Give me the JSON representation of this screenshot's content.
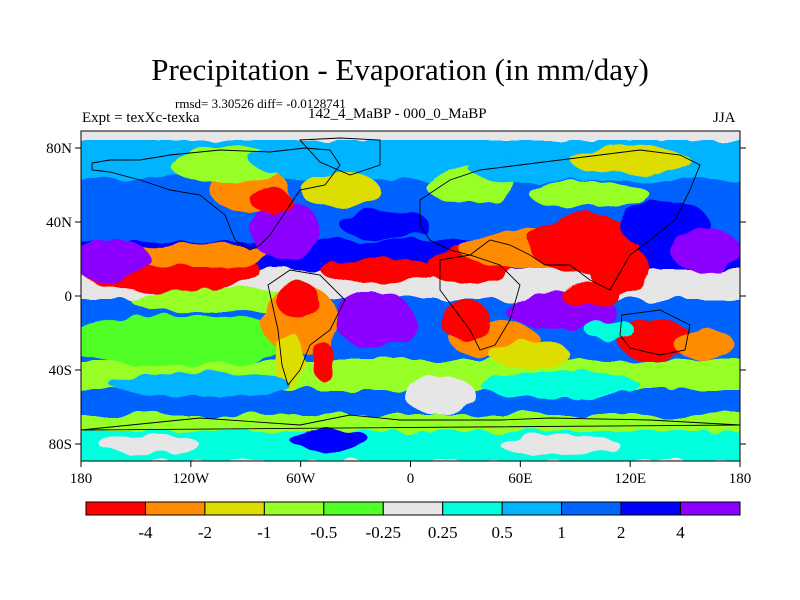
{
  "title": "Precipitation - Evaporation (in mm/day)",
  "stats": "rmsd= 3.30526 diff= -0.0128741",
  "left_label": "Expt = texXc-texka",
  "center_label": "142_4_MaBP - 000_0_MaBP",
  "right_label": "JJA",
  "lat_ticks": [
    "80N",
    "40N",
    "0",
    "40S",
    "80S"
  ],
  "lon_ticks": [
    "180",
    "120W",
    "60W",
    "0",
    "60E",
    "120E",
    "180"
  ],
  "colorbar": {
    "colors": [
      "#ff0000",
      "#ff8c00",
      "#dddd00",
      "#98ff28",
      "#50ff28",
      "#e6e6e6",
      "#00ffdc",
      "#00b4ff",
      "#0064ff",
      "#0000ff",
      "#8c00ff"
    ],
    "labels": [
      "-4",
      "-2",
      "-1",
      "-0.5",
      "-0.25",
      "0.25",
      "0.5",
      "1",
      "2",
      "4"
    ]
  }
}
